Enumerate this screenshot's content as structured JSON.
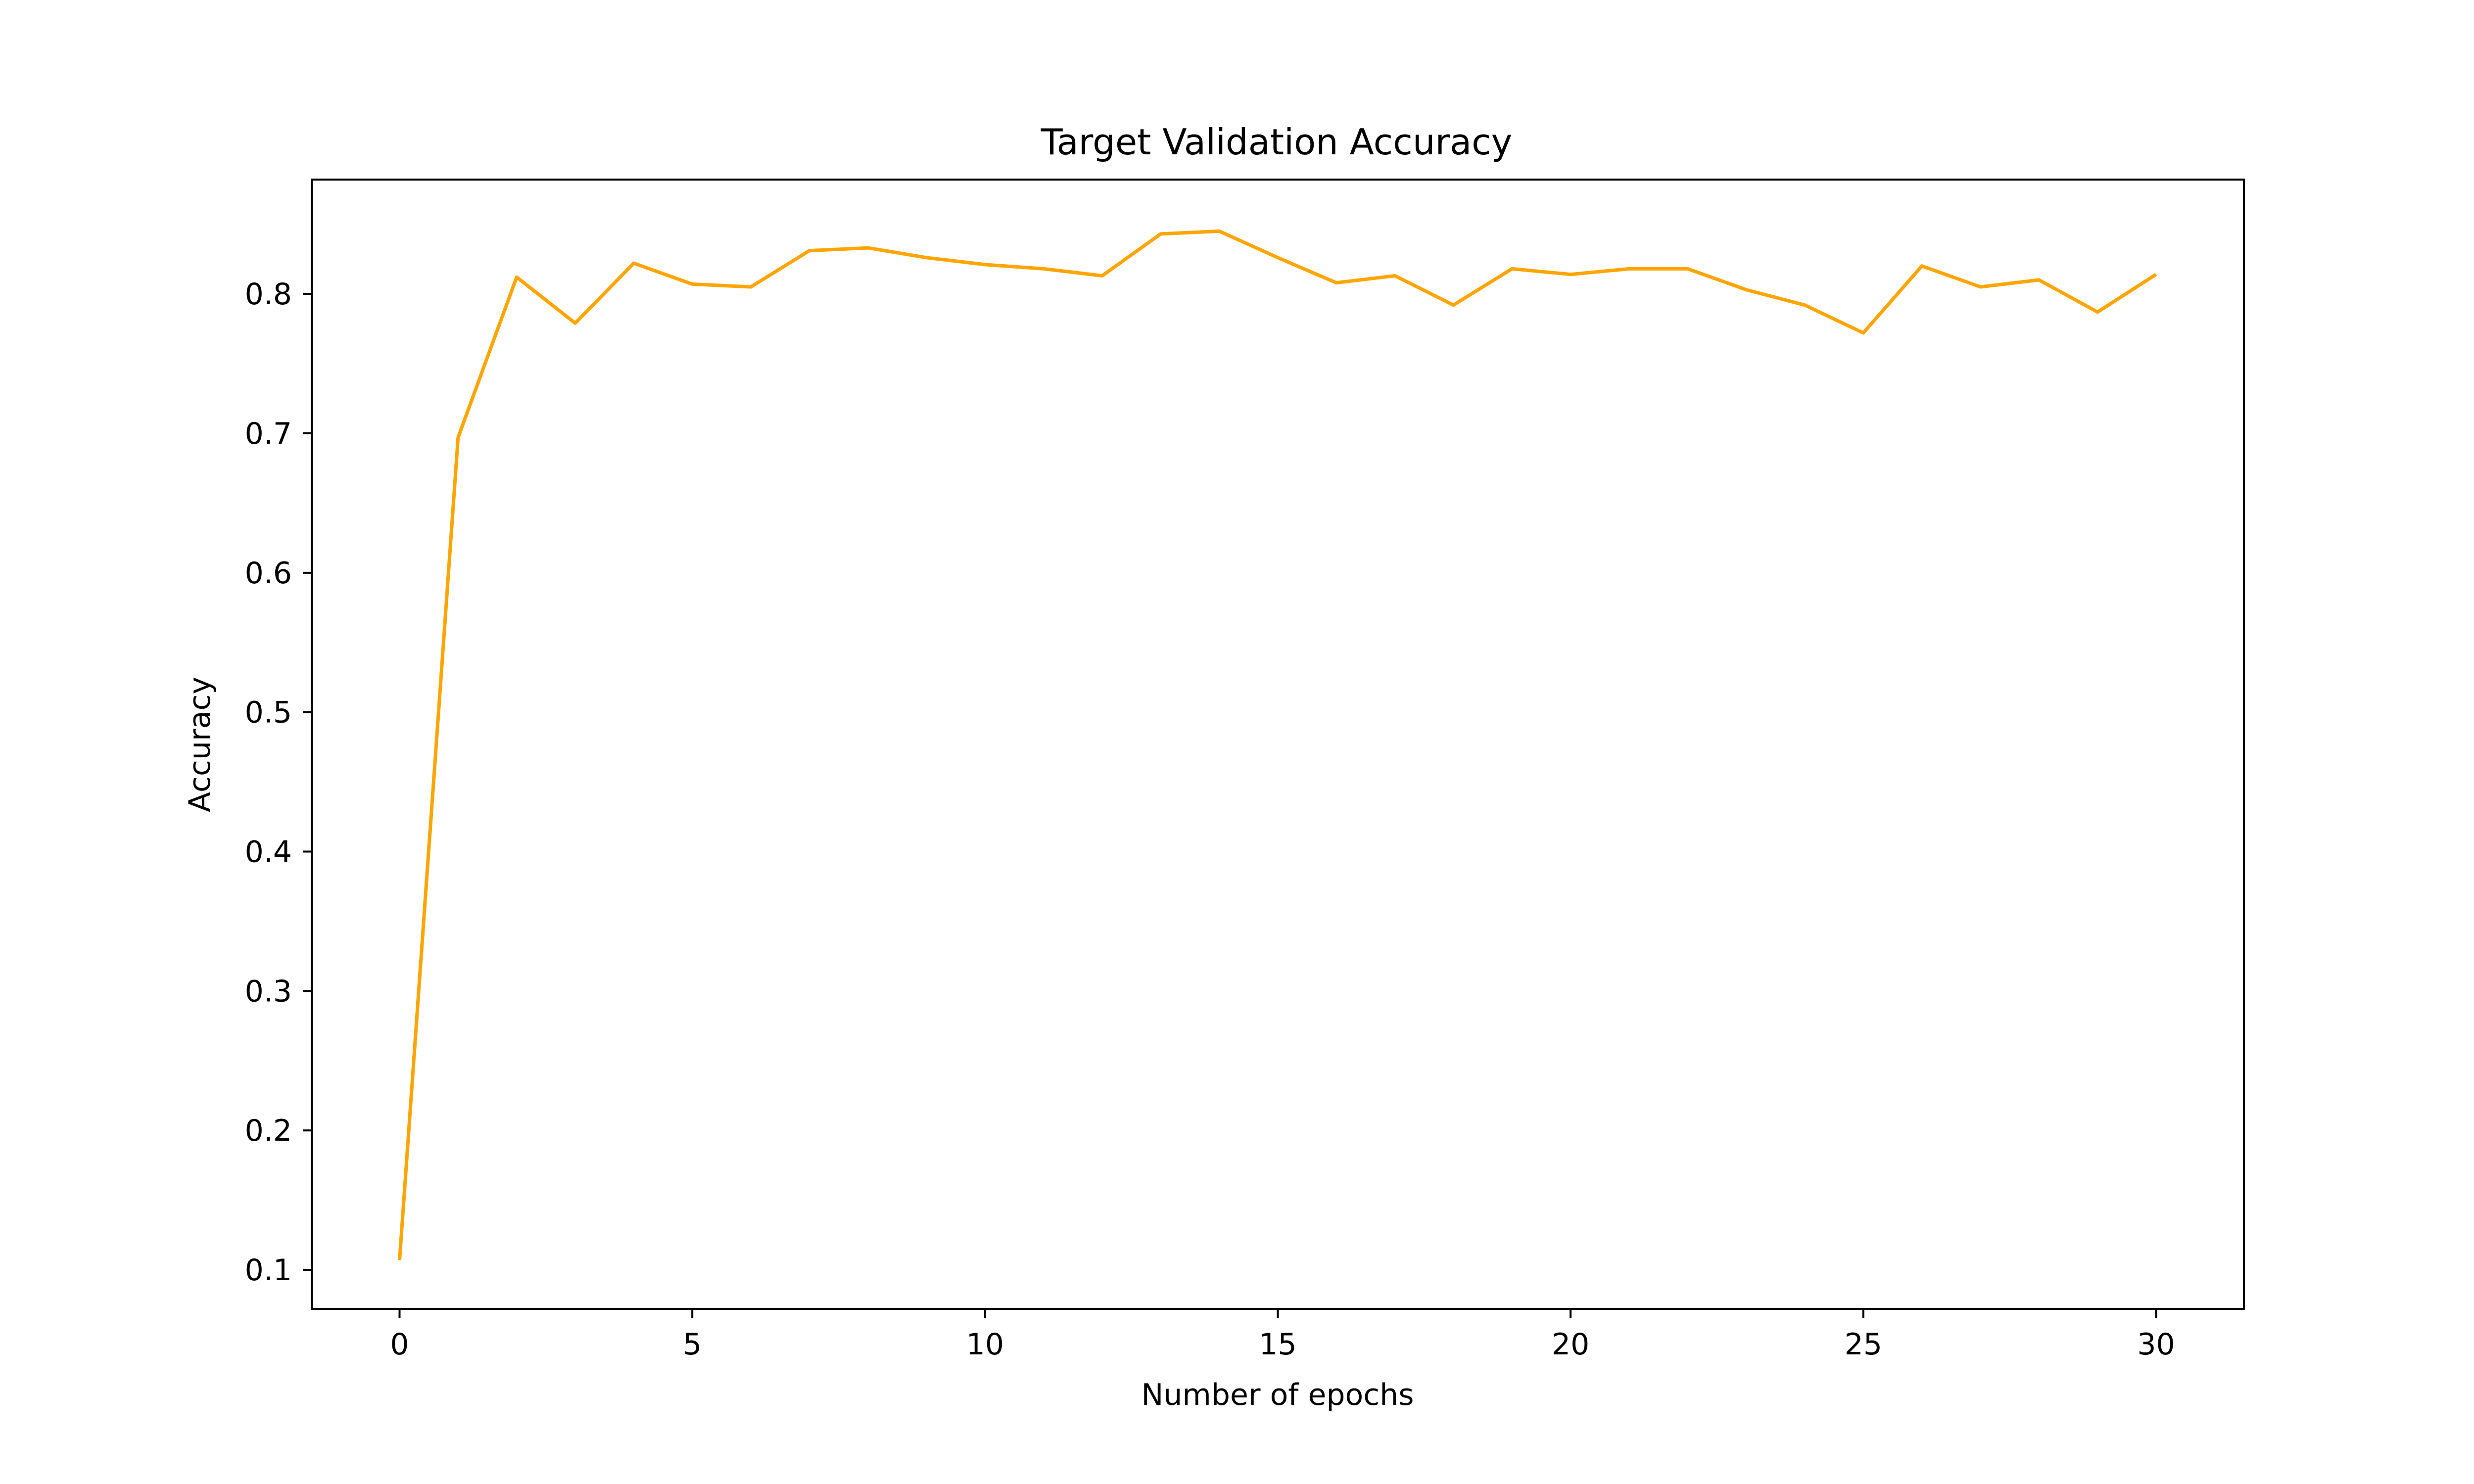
{
  "chart_data": {
    "type": "line",
    "title": "Target Validation Accuracy",
    "xlabel": "Number of epochs",
    "ylabel": "Accuracy",
    "xlim": [
      -1.5,
      31.5
    ],
    "ylim": [
      0.072,
      0.882
    ],
    "xticks": [
      0,
      5,
      10,
      15,
      20,
      25,
      30
    ],
    "xtick_labels": [
      "0",
      "5",
      "10",
      "15",
      "20",
      "25",
      "30"
    ],
    "yticks": [
      0.1,
      0.2,
      0.3,
      0.4,
      0.5,
      0.6,
      0.7,
      0.8
    ],
    "ytick_labels": [
      "0.1",
      "0.2",
      "0.3",
      "0.4",
      "0.5",
      "0.6",
      "0.7",
      "0.8"
    ],
    "grid": false,
    "legend": false,
    "series": [
      {
        "color": "#FFA500",
        "x": [
          0,
          1,
          2,
          3,
          4,
          5,
          6,
          7,
          8,
          9,
          10,
          11,
          12,
          13,
          14,
          15,
          16,
          17,
          18,
          19,
          20,
          21,
          22,
          23,
          24,
          25,
          26,
          27,
          28,
          29,
          30
        ],
        "values": [
          0.107,
          0.697,
          0.812,
          0.779,
          0.822,
          0.807,
          0.805,
          0.831,
          0.833,
          0.826,
          0.821,
          0.818,
          0.813,
          0.843,
          0.845,
          0.826,
          0.808,
          0.813,
          0.792,
          0.818,
          0.814,
          0.818,
          0.818,
          0.803,
          0.792,
          0.772,
          0.82,
          0.805,
          0.81,
          0.787,
          0.814
        ]
      }
    ]
  }
}
